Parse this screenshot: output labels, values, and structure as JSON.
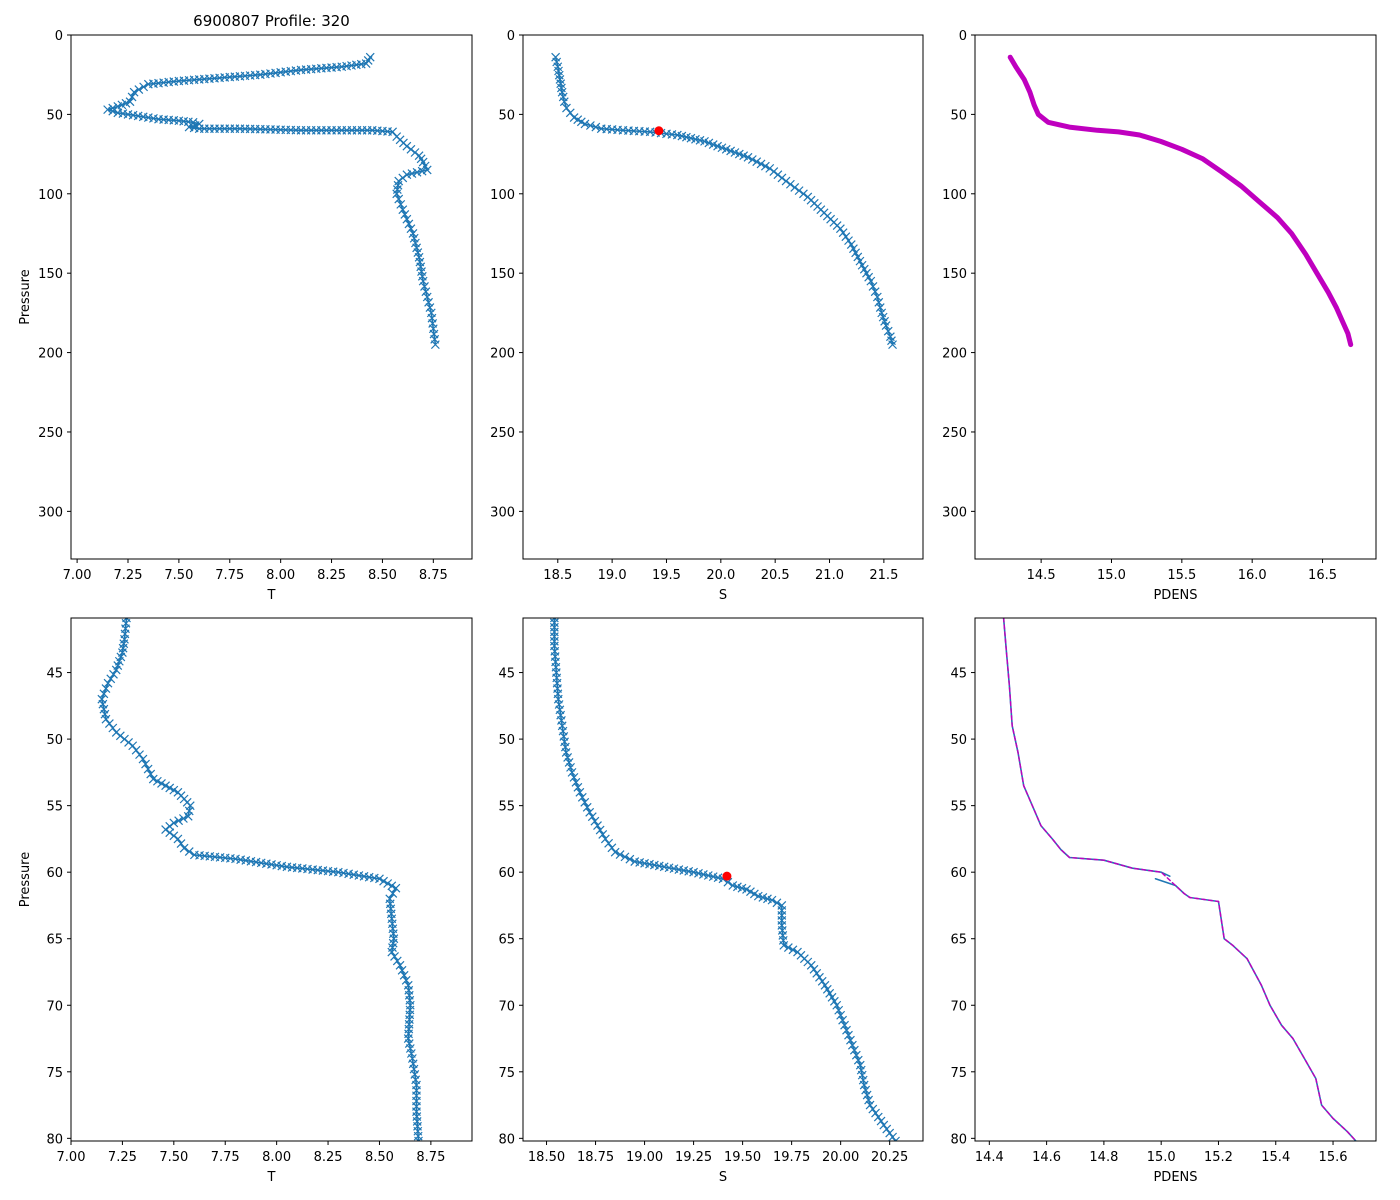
{
  "figure_title": "6900807 Profile: 320",
  "colors": {
    "blue": "#1f77b4",
    "magenta": "#bf00bf",
    "red": "#ff0000",
    "axis": "#000000"
  },
  "chart_data": [
    {
      "type": "line",
      "name": "top-temperature",
      "title": "6900807 Profile: 320",
      "xlabel": "T",
      "ylabel": "Pressure",
      "xlim": [
        6.97,
        8.94
      ],
      "ylim": [
        330,
        0
      ],
      "xticks": [
        "7.00",
        "7.25",
        "7.50",
        "7.75",
        "8.00",
        "8.25",
        "8.50",
        "8.75"
      ],
      "yticks": [
        "0",
        "50",
        "100",
        "150",
        "200",
        "250",
        "300"
      ],
      "series": [
        {
          "name": "T",
          "style": "line-x",
          "color": "#1f77b4",
          "x": [
            8.44,
            8.42,
            8.3,
            8.1,
            7.9,
            7.7,
            7.5,
            7.35,
            7.28,
            7.26,
            7.2,
            7.15,
            7.2,
            7.3,
            7.4,
            7.5,
            7.57,
            7.6,
            7.58,
            7.55,
            7.6,
            7.8,
            8.1,
            8.45,
            8.55,
            8.57,
            8.62,
            8.68,
            8.7,
            8.72,
            8.62,
            8.58,
            8.57,
            8.6,
            8.65,
            8.68,
            8.7,
            8.72,
            8.74,
            8.75,
            8.76
          ],
          "y": [
            14,
            18,
            20,
            22,
            25,
            27,
            29,
            31,
            36,
            42,
            45,
            47,
            49,
            51,
            53,
            54,
            55,
            56,
            57,
            58,
            59,
            59,
            60,
            60,
            61,
            64,
            70,
            76,
            80,
            85,
            88,
            92,
            100,
            110,
            125,
            140,
            155,
            165,
            175,
            185,
            195
          ]
        }
      ]
    },
    {
      "type": "line",
      "name": "top-salinity",
      "xlabel": "S",
      "ylabel": "",
      "xlim": [
        18.18,
        21.86
      ],
      "ylim": [
        330,
        0
      ],
      "xticks": [
        "18.5",
        "19.0",
        "19.5",
        "20.0",
        "20.5",
        "21.0",
        "21.5"
      ],
      "yticks": [
        "0",
        "50",
        "100",
        "150",
        "200",
        "250",
        "300"
      ],
      "series": [
        {
          "name": "S",
          "style": "line-x",
          "color": "#1f77b4",
          "x": [
            18.48,
            18.5,
            18.52,
            18.54,
            18.56,
            18.58,
            18.65,
            18.75,
            18.9,
            19.1,
            19.35,
            19.6,
            19.85,
            20.05,
            20.25,
            20.45,
            20.6,
            20.8,
            20.95,
            21.1,
            21.2,
            21.3,
            21.38,
            21.44,
            21.48,
            21.52,
            21.56,
            21.58
          ],
          "y": [
            14,
            20,
            28,
            36,
            42,
            46,
            52,
            56,
            59,
            60,
            61,
            63,
            67,
            72,
            77,
            84,
            92,
            102,
            112,
            122,
            132,
            145,
            155,
            165,
            175,
            183,
            190,
            195
          ]
        },
        {
          "name": "MLD",
          "style": "dot",
          "color": "#ff0000",
          "x": [
            19.43
          ],
          "y": [
            60.3
          ]
        }
      ]
    },
    {
      "type": "line",
      "name": "top-density",
      "xlabel": "PDENS",
      "ylabel": "",
      "xlim": [
        14.03,
        16.88
      ],
      "ylim": [
        330,
        0
      ],
      "xticks": [
        "14.5",
        "15.0",
        "15.5",
        "16.0",
        "16.5"
      ],
      "yticks": [
        "0",
        "50",
        "100",
        "150",
        "200",
        "250",
        "300"
      ],
      "series": [
        {
          "name": "PDENS",
          "style": "thick-line",
          "color": "#bf00bf",
          "x": [
            14.28,
            14.32,
            14.38,
            14.42,
            14.45,
            14.48,
            14.55,
            14.7,
            14.9,
            15.05,
            15.2,
            15.35,
            15.5,
            15.65,
            15.78,
            15.92,
            16.05,
            16.18,
            16.28,
            16.38,
            16.46,
            16.54,
            16.6,
            16.64,
            16.68,
            16.7
          ],
          "y": [
            14,
            20,
            28,
            36,
            44,
            50,
            55,
            58,
            60,
            61,
            63,
            67,
            72,
            78,
            86,
            95,
            105,
            115,
            125,
            138,
            150,
            162,
            172,
            180,
            188,
            195
          ]
        }
      ]
    },
    {
      "type": "line",
      "name": "bottom-temperature",
      "xlabel": "T",
      "ylabel": "Pressure",
      "xlim": [
        7.0,
        8.95
      ],
      "ylim": [
        80.2,
        40.9
      ],
      "xticks": [
        "7.00",
        "7.25",
        "7.50",
        "7.75",
        "8.00",
        "8.25",
        "8.50",
        "8.75"
      ],
      "yticks": [
        "45",
        "50",
        "55",
        "60",
        "65",
        "70",
        "75",
        "80"
      ],
      "series": [
        {
          "name": "T",
          "style": "line-x",
          "color": "#1f77b4",
          "x": [
            7.27,
            7.26,
            7.25,
            7.22,
            7.18,
            7.15,
            7.17,
            7.22,
            7.3,
            7.35,
            7.4,
            7.52,
            7.58,
            7.57,
            7.5,
            7.46,
            7.52,
            7.55,
            7.6,
            7.8,
            8.05,
            8.3,
            8.5,
            8.58,
            8.55,
            8.56,
            8.57,
            8.56,
            8.6,
            8.64,
            8.65,
            8.64,
            8.66,
            8.68,
            8.68,
            8.69
          ],
          "y": [
            40.9,
            42.5,
            43.5,
            44.8,
            45.8,
            47.0,
            48.5,
            49.5,
            50.5,
            51.5,
            53.0,
            54.0,
            55.0,
            55.8,
            56.3,
            56.8,
            57.5,
            58.2,
            58.7,
            59.0,
            59.6,
            60.0,
            60.5,
            61.2,
            62.0,
            63.5,
            65.0,
            66.0,
            67.0,
            68.5,
            70.0,
            72.5,
            74.0,
            76.0,
            78.0,
            80.2
          ]
        }
      ]
    },
    {
      "type": "line",
      "name": "bottom-salinity",
      "xlabel": "S",
      "ylabel": "",
      "xlim": [
        18.38,
        20.42
      ],
      "ylim": [
        80.2,
        40.9
      ],
      "xticks": [
        "18.50",
        "18.75",
        "19.00",
        "19.25",
        "19.50",
        "19.75",
        "20.00",
        "20.25"
      ],
      "yticks": [
        "45",
        "50",
        "55",
        "60",
        "65",
        "70",
        "75",
        "80"
      ],
      "series": [
        {
          "name": "S",
          "style": "line-x",
          "color": "#1f77b4",
          "x": [
            18.54,
            18.54,
            18.55,
            18.56,
            18.58,
            18.6,
            18.63,
            18.67,
            18.72,
            18.76,
            18.8,
            18.85,
            18.95,
            19.1,
            19.25,
            19.4,
            19.45,
            19.52,
            19.58,
            19.65,
            19.7,
            19.7,
            19.71,
            19.78,
            19.85,
            19.92,
            19.98,
            20.02,
            20.06,
            20.1,
            20.12,
            20.15,
            20.22,
            20.28
          ],
          "y": [
            40.9,
            43.0,
            45.0,
            47.0,
            49.0,
            51.0,
            52.5,
            54.0,
            55.5,
            56.5,
            57.5,
            58.5,
            59.2,
            59.6,
            60.0,
            60.5,
            61.0,
            61.3,
            61.8,
            62.1,
            62.5,
            64.0,
            65.5,
            66.0,
            67.0,
            68.5,
            70.0,
            71.5,
            73.0,
            74.5,
            76.0,
            77.5,
            79.0,
            80.2
          ]
        },
        {
          "name": "MLD",
          "style": "dot",
          "color": "#ff0000",
          "x": [
            19.42
          ],
          "y": [
            60.3
          ]
        }
      ]
    },
    {
      "type": "line",
      "name": "bottom-density",
      "xlabel": "PDENS",
      "ylabel": "",
      "xlim": [
        14.35,
        15.75
      ],
      "ylim": [
        80.2,
        40.9
      ],
      "xticks": [
        "14.4",
        "14.6",
        "14.8",
        "15.0",
        "15.2",
        "15.4",
        "15.6"
      ],
      "yticks": [
        "45",
        "50",
        "55",
        "60",
        "65",
        "70",
        "75",
        "80"
      ],
      "series": [
        {
          "name": "PDENS",
          "style": "line",
          "color": "#1f77b4",
          "x": [
            14.45,
            14.46,
            14.47,
            14.48,
            14.5,
            14.52,
            14.55,
            14.58,
            14.62,
            14.65,
            14.68,
            14.8,
            14.9,
            15.0,
            15.03
          ],
          "y": [
            40.9,
            43.5,
            46.0,
            49.0,
            51.0,
            53.5,
            55.0,
            56.5,
            57.5,
            58.3,
            58.9,
            59.1,
            59.7,
            60.0,
            60.3
          ]
        },
        {
          "name": "PDENS-deep",
          "style": "line",
          "color": "#1f77b4",
          "x": [
            14.98,
            15.05,
            15.08,
            15.1,
            15.2,
            15.22,
            15.25,
            15.3,
            15.35,
            15.38,
            15.42,
            15.46,
            15.5,
            15.54,
            15.56,
            15.6,
            15.65,
            15.68
          ],
          "y": [
            60.5,
            61.0,
            61.6,
            61.9,
            62.2,
            65.0,
            65.5,
            66.5,
            68.5,
            70.0,
            71.5,
            72.5,
            74.0,
            75.5,
            77.5,
            78.5,
            79.5,
            80.2
          ]
        },
        {
          "name": "PDENS-overlay",
          "style": "dashed",
          "color": "#bf00bf",
          "x": [
            14.45,
            14.46,
            14.47,
            14.48,
            14.5,
            14.52,
            14.55,
            14.58,
            14.62,
            14.65,
            14.68,
            14.8,
            14.9,
            15.0,
            15.05,
            15.08,
            15.1,
            15.2,
            15.22,
            15.25,
            15.3,
            15.35,
            15.38,
            15.42,
            15.46,
            15.5,
            15.54,
            15.56,
            15.6,
            15.65,
            15.68
          ],
          "y": [
            40.9,
            43.5,
            46.0,
            49.0,
            51.0,
            53.5,
            55.0,
            56.5,
            57.5,
            58.3,
            58.9,
            59.1,
            59.7,
            60.0,
            61.0,
            61.6,
            61.9,
            62.2,
            65.0,
            65.5,
            66.5,
            68.5,
            70.0,
            71.5,
            72.5,
            74.0,
            75.5,
            77.5,
            78.5,
            79.5,
            80.2
          ]
        }
      ]
    }
  ]
}
